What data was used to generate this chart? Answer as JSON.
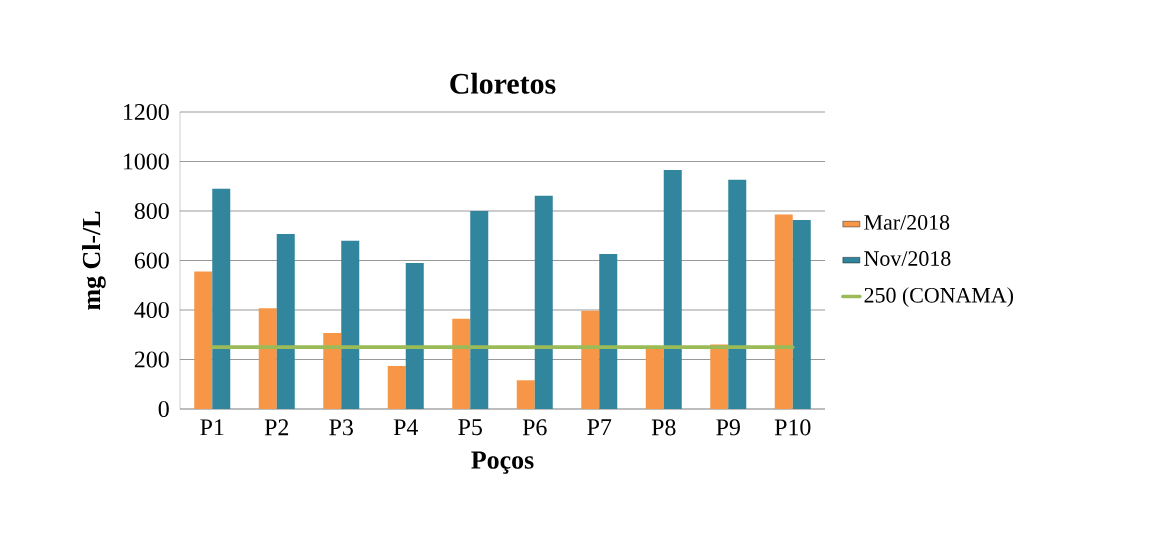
{
  "chart_data": {
    "type": "bar",
    "title": "Cloretos",
    "xlabel": "Poços",
    "ylabel": "mg Cl-/L",
    "categories": [
      "P1",
      "P2",
      "P3",
      "P4",
      "P5",
      "P6",
      "P7",
      "P8",
      "P9",
      "P10"
    ],
    "series": [
      {
        "name": "Mar/2018",
        "color": "#f79646",
        "values": [
          556,
          407,
          307,
          174,
          365,
          116,
          397,
          250,
          261,
          786
        ]
      },
      {
        "name": "Nov/2018",
        "color": "#31859c",
        "values": [
          890,
          707,
          680,
          590,
          800,
          862,
          626,
          966,
          926,
          764
        ]
      },
      {
        "name": "250 (CONAMA)",
        "type": "line",
        "color": "#9bbb59",
        "values": [
          250,
          250,
          250,
          250,
          250,
          250,
          250,
          250,
          250,
          250
        ]
      }
    ],
    "ylim": [
      0,
      1200
    ],
    "yticks": [
      0,
      200,
      400,
      600,
      800,
      1000,
      1200
    ],
    "grid": "y",
    "legend": "right"
  }
}
